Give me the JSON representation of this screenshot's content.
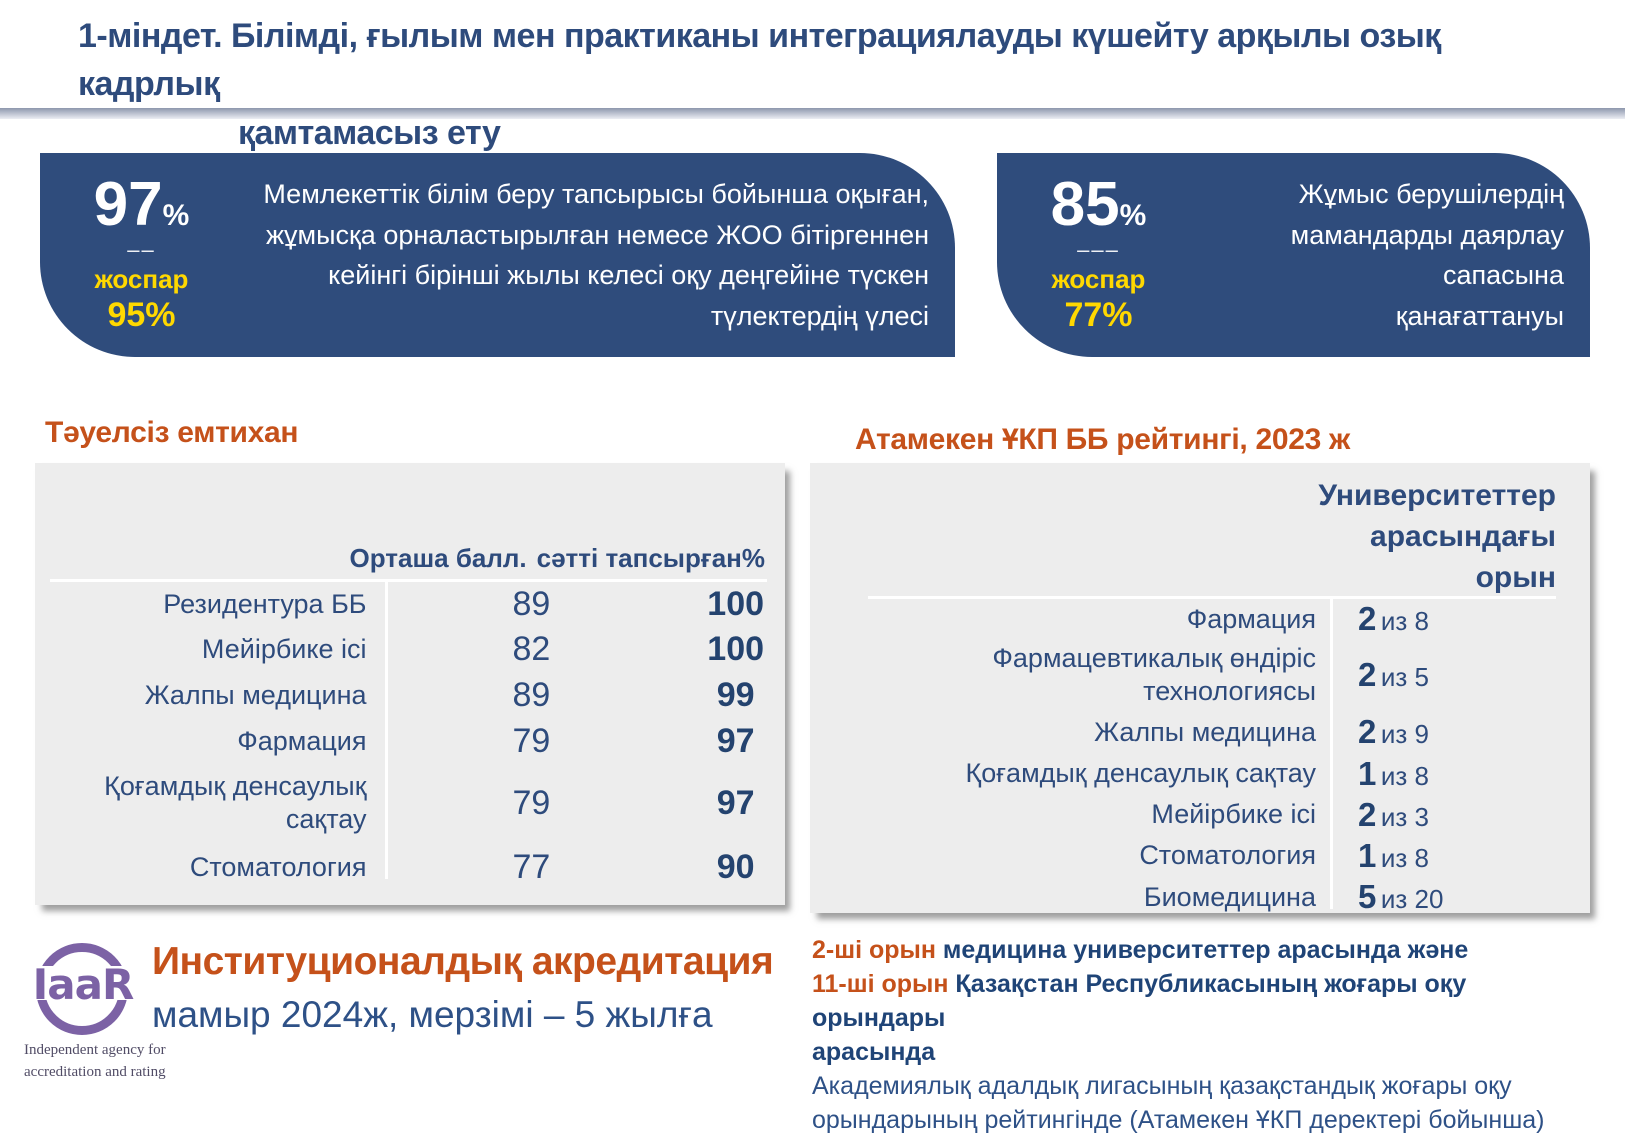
{
  "title": {
    "line1": "1-міндет. Білімді, ғылым мен практиканы интеграциялауды күшейту арқылы озық кадрлық",
    "line2": "қамтамасыз ету"
  },
  "kpi_boxes": [
    {
      "value": "97",
      "unit": "%",
      "dash": "––",
      "plan_label": "жоспар",
      "plan_value": "95%",
      "desc_lines": [
        "Мемлекеттік білім беру тапсырысы бойынша оқыған,",
        "жұмысқа орналастырылған немесе ЖОО бітіргеннен",
        "кейінгі бірінші жылы келесі оқу деңгейіне түскен",
        "түлектердің үлесі"
      ]
    },
    {
      "value": "85",
      "unit": "%",
      "dash": "–––",
      "plan_label": "жоспар",
      "plan_value": "77%",
      "desc_lines": [
        "Жұмыс берушілердің",
        "мамандарды даярлау сапасына",
        "қанағаттануы"
      ]
    }
  ],
  "left_section": {
    "heading": "Тәуелсіз емтихан",
    "table": {
      "col2_header": "Орташа балл.",
      "col3_header": "сәтті тапсырған%",
      "rows": [
        {
          "label": "Резидентура ББ",
          "label2": "",
          "score": "89",
          "pass": "100"
        },
        {
          "label": "Мейірбике ісі",
          "label2": "",
          "score": "82",
          "pass": "100"
        },
        {
          "label": "Жалпы медицина",
          "label2": "",
          "score": "89",
          "pass": "99"
        },
        {
          "label": "Фармация",
          "label2": "",
          "score": "79",
          "pass": "97"
        },
        {
          "label": "Қоғамдық  денсаулық",
          "label2": "сақтау",
          "score": "79",
          "pass": "97"
        },
        {
          "label": "Стоматология",
          "label2": "",
          "score": "77",
          "pass": "90"
        }
      ]
    }
  },
  "right_section": {
    "heading": "Атамекен ҰКП ББ рейтингі, 2023 ж",
    "table": {
      "header_line1": "Университеттер",
      "header_line2": "арасындағы",
      "header_line3": "орын",
      "rows": [
        {
          "label": "Фармация",
          "label2": "",
          "rank": "2",
          "of": "из 8"
        },
        {
          "label": "Фармацевтикалық өндіріс",
          "label2": "технологиясы",
          "rank": "2",
          "of": "из 5"
        },
        {
          "label": "Жалпы медицина",
          "label2": "",
          "rank": "2",
          "of": "из 9"
        },
        {
          "label": "Қоғамдық денсаулық сақтау",
          "label2": "",
          "rank": "1",
          "of": "из 8"
        },
        {
          "label": "Мейірбике ісі",
          "label2": "",
          "rank": "2",
          "of": "из 3"
        },
        {
          "label": "Стоматология",
          "label2": "",
          "rank": "1",
          "of": "из 8"
        },
        {
          "label": "Биомедицина",
          "label2": "",
          "rank": "5",
          "of": "из 20"
        }
      ]
    },
    "notes": {
      "line1_highlight": "2-ші орын",
      "line1_rest": " медицина университеттер арасында және",
      "line2_highlight": "11-ші орын",
      "line2_rest": " Қазақстан Республикасының жоғары оқу орындары",
      "line3": "арасында",
      "paragraph": "Академиялық адалдық лигасының қазақстандық жоғары оқу орындарының рейтингінде (Атамекен ҰКП деректері бойынша)"
    }
  },
  "accreditation": {
    "logo_text": "IaaR",
    "logo_caption_line1": "Independent agency for",
    "logo_caption_line2": "accreditation and rating",
    "title": "Институционалдық акредитация",
    "subtitle": "мамыр 2024ж, мерзімі – 5 жылға"
  },
  "colors": {
    "navy": "#2E4B7C",
    "box_blue": "#2F4C7C",
    "orange": "#C5511A",
    "yellow": "#FFD800",
    "purple": "#7C62A5",
    "bold_navy": "#24436F",
    "text_navy": "#2E5187"
  }
}
